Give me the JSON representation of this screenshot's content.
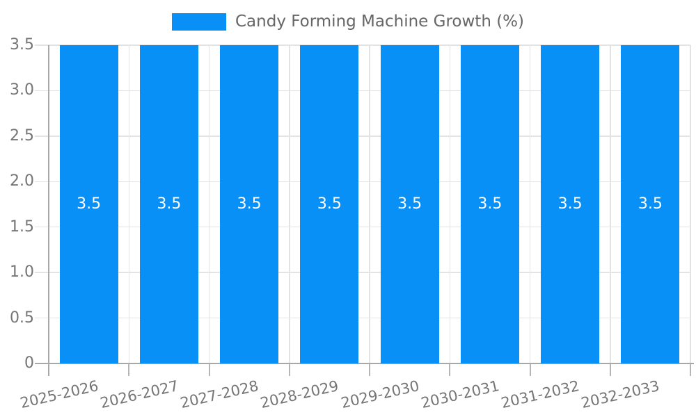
{
  "legend": {
    "label": "Candy Forming Machine Growth (%)"
  },
  "chart_data": {
    "type": "bar",
    "title": "",
    "legend_position": "top",
    "categories": [
      "2025-2026",
      "2026-2027",
      "2027-2028",
      "2028-2029",
      "2029-2030",
      "2030-2031",
      "2031-2032",
      "2032-2033"
    ],
    "series": [
      {
        "name": "Candy Forming Machine Growth (%)",
        "values": [
          3.5,
          3.5,
          3.5,
          3.5,
          3.5,
          3.5,
          3.5,
          3.5
        ]
      }
    ],
    "bar_value_labels": [
      "3.5",
      "3.5",
      "3.5",
      "3.5",
      "3.5",
      "3.5",
      "3.5",
      "3.5"
    ],
    "ylim": [
      0,
      3.5
    ],
    "yticks": {
      "values": [
        0,
        0.5,
        1.0,
        1.5,
        2.0,
        2.5,
        3.0,
        3.5
      ],
      "labels": [
        "0",
        "0.5",
        "1.0",
        "1.5",
        "2.0",
        "2.5",
        "3.0",
        "3.5"
      ]
    },
    "grid": true,
    "x_label_rotation_deg": -13,
    "colors": {
      "bar": "#0990F7",
      "grid": "#E3E3E3",
      "axis": "#A8A8A8",
      "tick": "#B5B5B5",
      "tick_text": "#757575",
      "legend_text": "#666666",
      "bar_label_text": "#FFFFFF",
      "background": "#FFFFFF"
    }
  }
}
